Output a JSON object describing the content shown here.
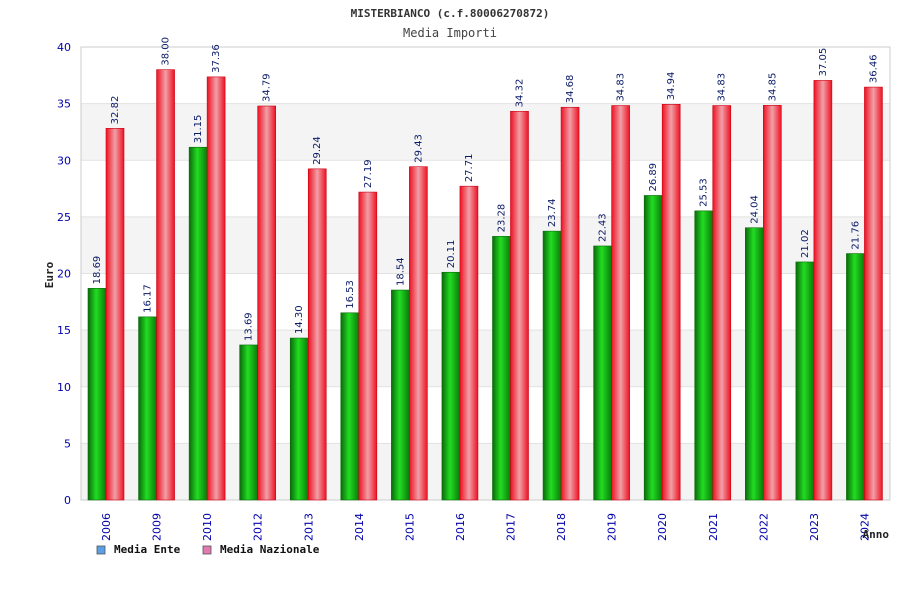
{
  "chart_data": {
    "type": "bar",
    "title": "MISTERBIANCO (c.f.80006270872)",
    "subtitle": "Media Importi",
    "xlabel": "Anno",
    "ylabel": "Euro",
    "ylim": [
      0,
      40
    ],
    "yticks": [
      0,
      5,
      10,
      15,
      20,
      25,
      30,
      35,
      40
    ],
    "grid": true,
    "legend_position": "bottom-left",
    "categories": [
      "2006",
      "2009",
      "2010",
      "2012",
      "2013",
      "2014",
      "2015",
      "2016",
      "2017",
      "2018",
      "2019",
      "2020",
      "2021",
      "2022",
      "2023",
      "2024"
    ],
    "series": [
      {
        "name": "Media Ente",
        "color": "#00aa00",
        "legend_color": "#5aa0e6",
        "values": [
          18.69,
          16.17,
          31.15,
          13.69,
          14.3,
          16.53,
          18.54,
          20.11,
          23.28,
          23.74,
          22.43,
          26.89,
          25.53,
          24.04,
          21.02,
          21.76
        ],
        "labels": [
          "18.69",
          "16.17",
          "31.15",
          "13.69",
          "14.30",
          "16.53",
          "18.54",
          "20.11",
          "23.28",
          "23.74",
          "22.43",
          "26.89",
          "25.53",
          "24.04",
          "21.02",
          "21.76"
        ]
      },
      {
        "name": "Media Nazionale",
        "color": "#ee1122",
        "legend_color": "#e07ab0",
        "values": [
          32.82,
          38.0,
          37.36,
          34.79,
          29.24,
          27.19,
          29.43,
          27.71,
          34.32,
          34.68,
          34.83,
          34.94,
          34.83,
          34.85,
          37.05,
          36.46
        ],
        "labels": [
          "32.82",
          "38.00",
          "37.36",
          "34.79",
          "29.24",
          "27.19",
          "29.43",
          "27.71",
          "34.32",
          "34.68",
          "34.83",
          "34.94",
          "34.83",
          "34.85",
          "37.05",
          "36.46"
        ]
      }
    ]
  }
}
